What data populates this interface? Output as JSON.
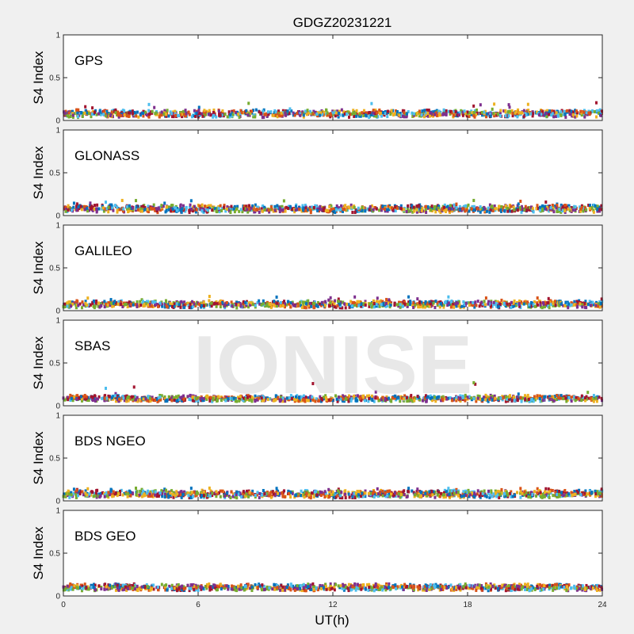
{
  "figure_title": "GDGZ20231221",
  "watermark": "IONISE",
  "chart_data": {
    "type": "scatter",
    "title": "GDGZ20231221",
    "xlabel": "UT(h)",
    "ylabel": "S4 Index",
    "xlim": [
      0,
      24
    ],
    "ylim": [
      0,
      1
    ],
    "x_ticks": [
      "0",
      "6",
      "12",
      "18",
      "24"
    ],
    "y_ticks": [
      "0",
      "0.5",
      "1"
    ],
    "grid": false,
    "series_colors": [
      "#0072BD",
      "#D95319",
      "#EDB120",
      "#7E2F8E",
      "#77AC30",
      "#4DBEEE",
      "#A2142F"
    ],
    "panels": [
      {
        "label": "GPS",
        "baseline_s4": [
          0.03,
          0.13
        ],
        "spike_max_s4": 0.21
      },
      {
        "label": "GLONASS",
        "baseline_s4": [
          0.03,
          0.13
        ],
        "spike_max_s4": 0.18
      },
      {
        "label": "GALILEO",
        "baseline_s4": [
          0.03,
          0.12
        ],
        "spike_max_s4": 0.17
      },
      {
        "label": "SBAS",
        "baseline_s4": [
          0.05,
          0.12
        ],
        "spike_max_s4": 0.28
      },
      {
        "label": "BDS NGEO",
        "baseline_s4": [
          0.03,
          0.13
        ],
        "spike_max_s4": 0.15
      },
      {
        "label": "BDS GEO",
        "baseline_s4": [
          0.06,
          0.14
        ],
        "spike_max_s4": 0.14
      }
    ]
  }
}
